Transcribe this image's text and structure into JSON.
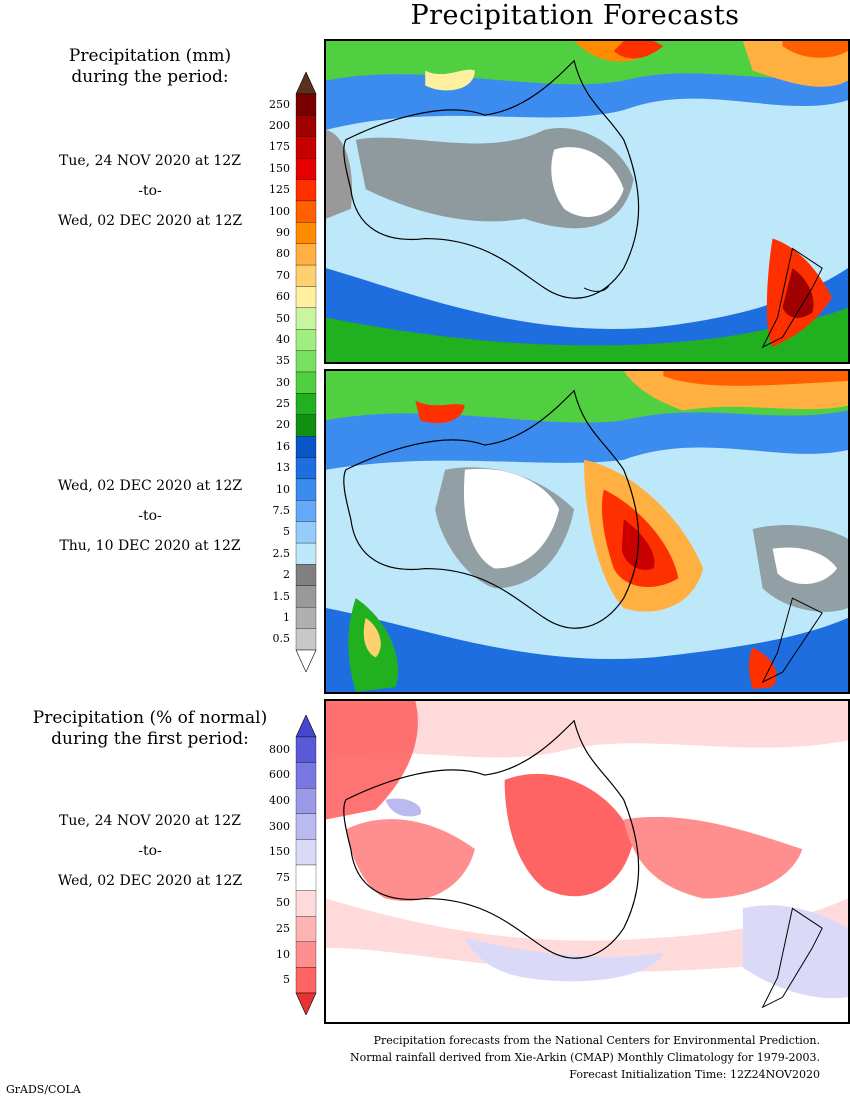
{
  "title": "Precipitation Forecasts",
  "left_labels": {
    "mm_header_line1": "Precipitation (mm)",
    "mm_header_line2": "during the period:",
    "period1": {
      "start": "Tue, 24 NOV 2020 at 12Z",
      "to": "-to-",
      "end": "Wed, 02 DEC 2020 at 12Z"
    },
    "period2": {
      "start": "Wed, 02 DEC 2020 at 12Z",
      "to": "-to-",
      "end": "Thu, 10 DEC 2020 at 12Z"
    },
    "pct_header_line1": "Precipitation (% of normal)",
    "pct_header_line2": "during the first period:",
    "period3": {
      "start": "Tue, 24 NOV 2020 at 12Z",
      "to": "-to-",
      "end": "Wed, 02 DEC 2020 at 12Z"
    }
  },
  "mm_colorbar": {
    "labels": [
      "250",
      "200",
      "175",
      "150",
      "125",
      "100",
      "90",
      "80",
      "70",
      "60",
      "50",
      "40",
      "35",
      "30",
      "25",
      "20",
      "16",
      "13",
      "10",
      "7.5",
      "5",
      "2.5",
      "2",
      "1.5",
      "1",
      "0.5"
    ],
    "colors": [
      "#7a0000",
      "#a00000",
      "#c80000",
      "#e60000",
      "#ff3000",
      "#ff6000",
      "#ff8c00",
      "#ffb040",
      "#ffd070",
      "#fff0a0",
      "#c8f5a0",
      "#a0ee80",
      "#78e060",
      "#50d040",
      "#20b020",
      "#109010",
      "#0a56c8",
      "#1e6ee0",
      "#3c8cf0",
      "#64aaf8",
      "#96ccfa",
      "#bde8fa",
      "#808080",
      "#999999",
      "#b0b0b0",
      "#c8c8c8"
    ],
    "top_arrow": "#5a3020",
    "bottom_arrow": "#ffffff"
  },
  "pct_colorbar": {
    "labels": [
      "800",
      "600",
      "400",
      "300",
      "150",
      "75",
      "50",
      "25",
      "10",
      "5"
    ],
    "colors": [
      "#5a5ad6",
      "#7878e0",
      "#9a9ae8",
      "#babaf0",
      "#dadaf8",
      "#ffffff",
      "#ffdada",
      "#ffb4b4",
      "#ff8e8e",
      "#ff6464"
    ],
    "top_arrow": "#4646d0",
    "bottom_arrow": "#e63232"
  },
  "footer": {
    "line1": "Precipitation forecasts from the National Centers for Environmental Prediction.",
    "line2": "Normal rainfall derived from Xie-Arkin (CMAP) Monthly Climatology for 1979-2003.",
    "line3": "Forecast Initialization Time: 12Z24NOV2020"
  },
  "credit": "GrADS/COLA"
}
